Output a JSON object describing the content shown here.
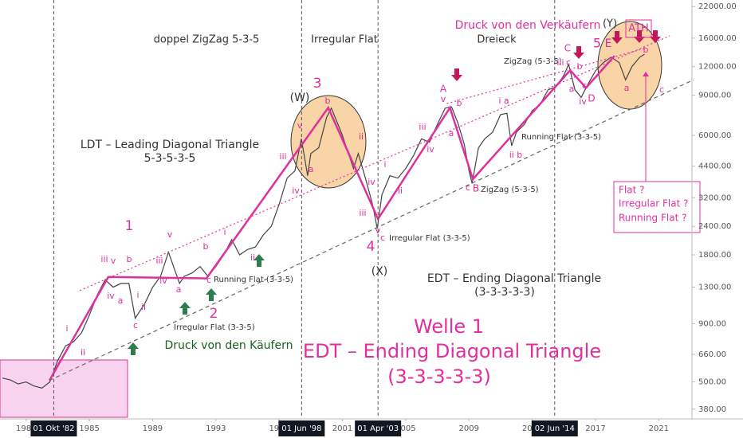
{
  "chart_data": {
    "type": "line",
    "log_y": true,
    "grid": false,
    "xlim": [
      1979.35,
      2023.1
    ],
    "ylim": [
      350,
      23500
    ],
    "xticks": [
      1981,
      1985,
      1989,
      1993,
      1997,
      2001,
      2005,
      2009,
      2013,
      2017,
      2021
    ],
    "yticks": [
      {
        "value": 22000,
        "label": "22000.00"
      },
      {
        "value": 16000,
        "label": "16000.00"
      },
      {
        "value": 12000,
        "label": "12000.00"
      },
      {
        "value": 9000,
        "label": "9000.00"
      },
      {
        "value": 6000,
        "label": "6000.00"
      },
      {
        "value": 4400,
        "label": "4400.00"
      },
      {
        "value": 3200,
        "label": "3200.00"
      },
      {
        "value": 2400,
        "label": "2400.00"
      },
      {
        "value": 1800,
        "label": "1800.00"
      },
      {
        "value": 1300,
        "label": "1300.00"
      },
      {
        "value": 900,
        "label": "900.00"
      },
      {
        "value": 660,
        "label": "660.00"
      },
      {
        "value": 500,
        "label": "500.00"
      },
      {
        "value": 380,
        "label": "380.00"
      }
    ],
    "markers": [
      {
        "x": 1982.75,
        "label": "01 Okt '82"
      },
      {
        "x": 1998.42,
        "label": "01 Jun '98"
      },
      {
        "x": 2003.25,
        "label": "01 Apr '03"
      },
      {
        "x": 2014.42,
        "label": "02 Jun '14"
      }
    ],
    "series": [
      {
        "color": "#444444",
        "dash": "solid",
        "x": [
          1979.5,
          1980,
          1980.5,
          1981,
          1981.5,
          1982,
          1982.5,
          1983,
          1983.5,
          1984,
          1984.5,
          1985,
          1985.5,
          1986,
          1986.5,
          1987,
          1987.5,
          1987.9,
          1988.5,
          1989,
          1989.5,
          1990,
          1990.7,
          1991,
          1991.5,
          1992,
          1992.5,
          1993,
          1993.5,
          1994,
          1994.5,
          1995,
          1995.5,
          1996,
          1996.5,
          1997,
          1997.5,
          1998,
          1998.4,
          1998.8,
          1999,
          1999.5,
          2000,
          2000.3,
          2000.8,
          2001,
          2001.7,
          2002,
          2002.5,
          2002.9,
          2003.2,
          2003.5,
          2004,
          2004.5,
          2005,
          2005.5,
          2006,
          2006.5,
          2007,
          2007.5,
          2007.9,
          2008.3,
          2008.7,
          2009,
          2009.2,
          2009.6,
          2010,
          2010.5,
          2011,
          2011.4,
          2011.7,
          2012,
          2012.5,
          2013,
          2013.5,
          2014,
          2014.5,
          2015,
          2015.3,
          2015.7,
          2016.1,
          2016.5,
          2017,
          2017.5,
          2018,
          2018.5,
          2018.9,
          2019.3,
          2019.8,
          2020.1
        ],
        "values": [
          520,
          510,
          490,
          500,
          480,
          470,
          500,
          620,
          720,
          750,
          820,
          980,
          1200,
          1400,
          1300,
          1350,
          1350,
          950,
          1100,
          1300,
          1450,
          1850,
          1350,
          1450,
          1500,
          1600,
          1450,
          1600,
          1800,
          2100,
          1800,
          1900,
          1950,
          2200,
          2400,
          3000,
          3900,
          4200,
          5800,
          4000,
          5000,
          5300,
          7200,
          7900,
          6500,
          6000,
          4300,
          5000,
          3800,
          3000,
          2350,
          3300,
          4000,
          3900,
          4300,
          4900,
          5800,
          5600,
          6700,
          7900,
          8000,
          6800,
          5500,
          4200,
          3700,
          5300,
          5800,
          6200,
          7400,
          7500,
          5400,
          6200,
          6700,
          7700,
          8200,
          9500,
          9800,
          11000,
          12300,
          9500,
          8800,
          10000,
          11500,
          12500,
          13200,
          12500,
          10500,
          12000,
          13200,
          13600
        ]
      },
      {
        "color": "#e0309e",
        "dash": "solid",
        "x": [
          1982.48,
          1986.2,
          1992.4,
          2000.1,
          2003.25,
          2007.8,
          2009.25,
          2015.4,
          2016.4,
          2018.2
        ],
        "values": [
          508,
          1440,
          1420,
          7930,
          2585,
          7930,
          3860,
          11570,
          9700,
          13370
        ]
      },
      {
        "color": "#e0309e",
        "dash": "dotted",
        "x": [
          1984.4,
          2021.7
        ],
        "values": [
          1257,
          16370
        ]
      },
      {
        "color": "#e0309e",
        "dash": "dotted",
        "x": [
          2007.6,
          2020.2
        ],
        "values": [
          8270,
          14480
        ]
      },
      {
        "color": "#666666",
        "dash": "dashed",
        "x": [
          1982.48,
          2023.2
        ],
        "values": [
          508,
          10510
        ]
      }
    ],
    "annotations": [
      {
        "text": "doppel ZigZag 5-3-5",
        "color": "#333333"
      },
      {
        "text": "Irregular Flat",
        "color": "#333333"
      },
      {
        "text": "Dreieck",
        "color": "#333333"
      },
      {
        "text": "LDT – Leading Diagonal Triangle",
        "color": "#333333"
      },
      {
        "text": "5-3-5-3-5",
        "color": "#333333"
      },
      {
        "text": "Druck von den Käufern",
        "color": "#1b5e20"
      },
      {
        "text": "EDT – Ending Diagonal Triangle",
        "color": "#333333"
      },
      {
        "text": "(3-3-3-3-3)",
        "color": "#333333"
      },
      {
        "text": "(W)",
        "color": "#333333"
      },
      {
        "text": "(X)",
        "color": "#333333"
      },
      {
        "text": "(Y)",
        "color": "#333333"
      },
      {
        "text": "Irregular Flat (3-3-5)",
        "color": "#333333"
      },
      {
        "text": "Running Flat (3-3-5)",
        "color": "#333333"
      },
      {
        "text": "Irregular Flat (3-3-5)",
        "color": "#333333"
      },
      {
        "text": "ZigZag (5-3-5)",
        "color": "#333333"
      },
      {
        "text": "Running Flat (3-3-5)",
        "color": "#333333"
      },
      {
        "text": "ZigZag (5-3-5)",
        "color": "#333333"
      },
      {
        "text": "1",
        "color": "#e0309e"
      },
      {
        "text": "2",
        "color": "#e0309e"
      },
      {
        "text": "3",
        "color": "#e0309e"
      },
      {
        "text": "4",
        "color": "#e0309e"
      },
      {
        "text": "5",
        "color": "#e0309e"
      },
      {
        "text": "Welle 1",
        "color": "#e0309e"
      },
      {
        "text": "EDT – Ending Diagonal Triangle",
        "color": "#e0309e"
      },
      {
        "text": "(3-3-3-3-3)",
        "color": "#e0309e"
      },
      {
        "text": "Druck von den Verkäufern",
        "color": "#e0309e"
      },
      {
        "text": "ATH",
        "color": "#e0309e"
      },
      {
        "text": "Flat ?",
        "color": "#e0309e"
      },
      {
        "text": "Irregular Flat ?",
        "color": "#e0309e"
      },
      {
        "text": "Running Flat ?",
        "color": "#e0309e"
      },
      {
        "text": "A",
        "color": "#e0309e"
      },
      {
        "text": "B",
        "color": "#e0309e"
      },
      {
        "text": "C",
        "color": "#e0309e"
      },
      {
        "text": "D",
        "color": "#e0309e"
      },
      {
        "text": "E",
        "color": "#e0309e"
      },
      {
        "text": "i",
        "color": "#e0309e"
      },
      {
        "text": "ii",
        "color": "#e0309e"
      },
      {
        "text": "iii",
        "color": "#e0309e"
      },
      {
        "text": "v",
        "color": "#e0309e"
      },
      {
        "text": "b",
        "color": "#e0309e"
      },
      {
        "text": "iv",
        "color": "#e0309e"
      },
      {
        "text": "a",
        "color": "#e0309e"
      },
      {
        "text": "i",
        "color": "#e0309e"
      },
      {
        "text": "ii",
        "color": "#e0309e"
      },
      {
        "text": "c",
        "color": "#e0309e"
      },
      {
        "text": "iii",
        "color": "#e0309e"
      },
      {
        "text": "v",
        "color": "#e0309e"
      },
      {
        "text": "iv",
        "color": "#e0309e"
      },
      {
        "text": "a",
        "color": "#e0309e"
      },
      {
        "text": "b",
        "color": "#e0309e"
      },
      {
        "text": "c",
        "color": "#e0309e"
      },
      {
        "text": "i",
        "color": "#e0309e"
      },
      {
        "text": "ii",
        "color": "#e0309e"
      },
      {
        "text": "iii",
        "color": "#e0309e"
      },
      {
        "text": "v",
        "color": "#e0309e"
      },
      {
        "text": "iv",
        "color": "#e0309e"
      },
      {
        "text": "a",
        "color": "#e0309e"
      },
      {
        "text": "b",
        "color": "#e0309e"
      },
      {
        "text": "ii",
        "color": "#e0309e"
      },
      {
        "text": "iv",
        "color": "#e0309e"
      },
      {
        "text": "i",
        "color": "#e0309e"
      },
      {
        "text": "iii",
        "color": "#e0309e"
      },
      {
        "text": "ii",
        "color": "#e0309e"
      },
      {
        "text": "v",
        "color": "#e0309e"
      },
      {
        "text": "c",
        "color": "#e0309e"
      },
      {
        "text": "iii",
        "color": "#e0309e"
      },
      {
        "text": "iv",
        "color": "#e0309e"
      },
      {
        "text": "v",
        "color": "#e0309e"
      },
      {
        "text": "a",
        "color": "#e0309e"
      },
      {
        "text": "b",
        "color": "#e0309e"
      },
      {
        "text": "c",
        "color": "#e0309e"
      },
      {
        "text": "ii b",
        "color": "#e0309e"
      },
      {
        "text": "i a",
        "color": "#e0309e"
      },
      {
        "text": "iii",
        "color": "#e0309e"
      },
      {
        "text": "c",
        "color": "#e0309e"
      },
      {
        "text": "b",
        "color": "#e0309e"
      },
      {
        "text": "a",
        "color": "#e0309e"
      },
      {
        "text": "c",
        "color": "#e0309e"
      },
      {
        "text": "iv",
        "color": "#e0309e"
      },
      {
        "text": "b",
        "color": "#e0309e"
      },
      {
        "text": "a",
        "color": "#e0309e"
      },
      {
        "text": "c",
        "color": "#e0309e"
      }
    ]
  }
}
